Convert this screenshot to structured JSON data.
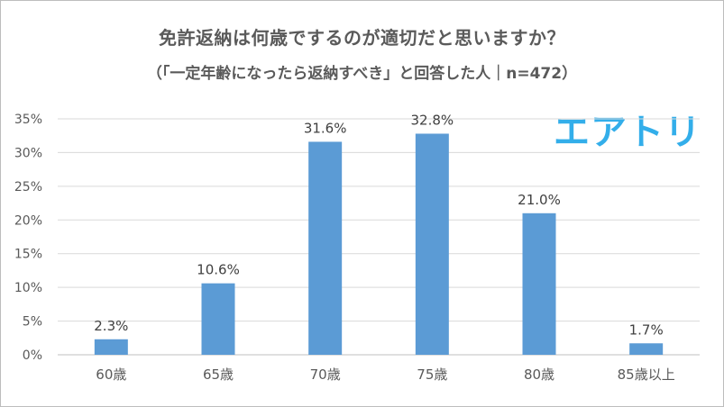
{
  "chart_data": {
    "type": "bar",
    "title": "免許返納は何歳でするのが適切だと思いますか？",
    "subtitle": "（「一定年齢になったら返納すべき」と回答した人｜n=472）",
    "categories": [
      "60歳",
      "65歳",
      "70歳",
      "75歳",
      "80歳",
      "85歳以上"
    ],
    "values": [
      2.3,
      10.6,
      31.6,
      32.8,
      21.0,
      1.7
    ],
    "data_labels": [
      "2.3%",
      "10.6%",
      "31.6%",
      "32.8%",
      "21.0%",
      "1.7%"
    ],
    "y_ticks": [
      "0%",
      "5%",
      "10%",
      "15%",
      "20%",
      "25%",
      "30%",
      "35%"
    ],
    "ylim": [
      0,
      35
    ],
    "grid": true,
    "bar_color": "#5b9bd5"
  },
  "logo": {
    "text": "エアトリ",
    "color": "#33aeea"
  }
}
